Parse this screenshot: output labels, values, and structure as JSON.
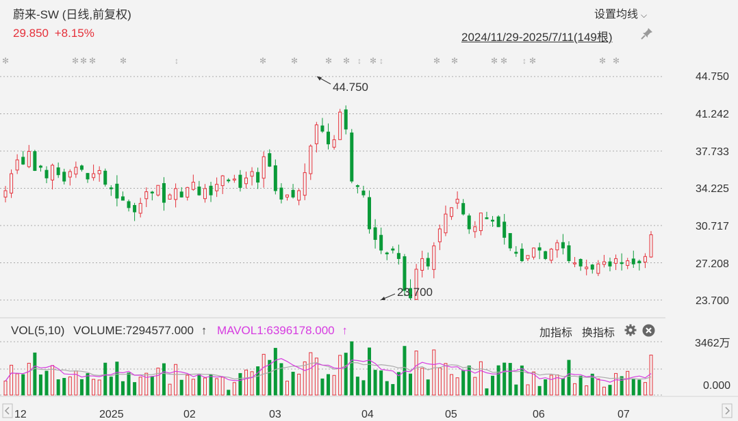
{
  "header": {
    "stock_name": "蔚来-SW (日线,前复权)",
    "price": "29.850",
    "change_pct": "+8.15%",
    "ma_setting_label": "设置均线",
    "date_range": "2024/11/29-2025/7/11(149根)"
  },
  "colors": {
    "up": "#e5303a",
    "down": "#0a9a38",
    "mavol1": "#d63be0",
    "mavol2": "#999999",
    "grid": "#a8a8a8"
  },
  "price_axis": [
    "44.750",
    "41.242",
    "37.733",
    "34.225",
    "30.717",
    "27.208",
    "23.700"
  ],
  "annotations": {
    "high": "44.750",
    "low": "23.700"
  },
  "volume_panel": {
    "vol_label": "VOL(5,10)",
    "volume_label": "VOLUME:7294577.000",
    "volume_arrow": "↑",
    "mavol1_label": "MAVOL1:6396178.000",
    "mavol1_arrow": "↑",
    "add_indicator": "加指标",
    "switch_indicator": "换指标",
    "axis_max": "3462万",
    "axis_min": "0.000"
  },
  "x_axis": [
    "12",
    "2025",
    "02",
    "03",
    "04",
    "05",
    "06",
    "07"
  ],
  "chart_data": {
    "type": "candlestick",
    "title": "蔚来-SW (日线,前复权)",
    "x_range": [
      "2024/11/29",
      "2025/7/11"
    ],
    "ylim": [
      23.7,
      44.75
    ],
    "candles_close": [
      34.0,
      35.6,
      36.9,
      36.5,
      37.7,
      35.9,
      36.2,
      35.2,
      36.4,
      35.5,
      34.9,
      35.8,
      36.2,
      36.0,
      35.1,
      35.6,
      35.9,
      34.6,
      34.2,
      33.3,
      33.1,
      32.4,
      32.0,
      32.8,
      33.9,
      33.8,
      34.5,
      32.9,
      33.6,
      34.2,
      33.4,
      34.3,
      34.8,
      33.6,
      34.2,
      33.6,
      34.6,
      35.4,
      35.0,
      35.1,
      34.3,
      35.2,
      35.8,
      34.8,
      37.2,
      36.3,
      34.0,
      33.2,
      33.6,
      33.4,
      34.0,
      35.7,
      38.2,
      40.2,
      39.6,
      38.4,
      38.8,
      41.4,
      39.8,
      34.9,
      34.4,
      33.6,
      30.4,
      29.4,
      28.4,
      28.1,
      28.4,
      27.6,
      24.6,
      23.9,
      26.6,
      27.6,
      26.9,
      28.8,
      30.4,
      31.8,
      32.4,
      33.2,
      31.8,
      30.4,
      30.6,
      31.9,
      31.4,
      31.2,
      30.6,
      29.6,
      28.6,
      28.1,
      27.4,
      27.9,
      28.6,
      28.4,
      27.6,
      28.5,
      29.1,
      28.6,
      27.4,
      27.2,
      26.9,
      26.8,
      26.6,
      27.1,
      27.3,
      26.9,
      27.6,
      27.2,
      27.4,
      27.1,
      27.2,
      27.8,
      29.85
    ],
    "volume_max_label": "3462万",
    "last_volume": 7294577,
    "mavol1": 6396178
  }
}
